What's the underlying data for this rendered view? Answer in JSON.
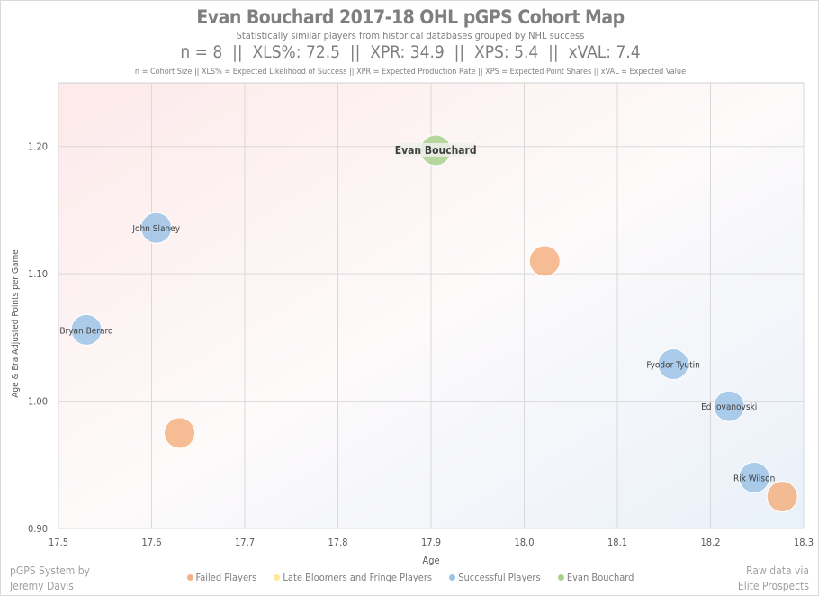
{
  "header": {
    "title": "Evan Bouchard 2017-18 OHL pGPS Cohort Map",
    "subtitle": "Statistically similar players from historical databases grouped by NHL success",
    "stats": "n = 8  ||  XLS%: 72.5  ||  XPR: 34.9  ||  XPS: 5.4  ||  xVAL: 7.4",
    "legend_note": "n = Cohort Size || XLS% = Expected Likelihood of Success || XPR = Expected Production Rate || XPS = Expected Point Shares || xVAL = Expected Value"
  },
  "footer": {
    "left_line1": "pGPS System by",
    "left_line2": "Jeremy Davis",
    "right_line1": "Raw data via",
    "right_line2": "Elite Prospects"
  },
  "chart_data": {
    "type": "scatter",
    "xlabel": "Age",
    "ylabel": "Age & Era Adjusted Points per Game",
    "xlim": [
      17.5,
      18.3
    ],
    "ylim": [
      0.9,
      1.25
    ],
    "xticks": [
      "17.5",
      "17.6",
      "17.7",
      "17.8",
      "17.9",
      "18.0",
      "18.1",
      "18.2",
      "18.3"
    ],
    "yticks": [
      "0.90",
      "1.00",
      "1.10",
      "1.20"
    ],
    "grid": true,
    "legend_position": "bottom",
    "series": [
      {
        "name": "Failed Players",
        "color": "#f4b183",
        "points": [
          {
            "x": 17.63,
            "y": 0.975,
            "label": ""
          },
          {
            "x": 18.022,
            "y": 1.11,
            "label": ""
          },
          {
            "x": 18.277,
            "y": 0.925,
            "label": ""
          }
        ]
      },
      {
        "name": "Late Bloomers and Fringe Players",
        "color": "#ffe699",
        "points": []
      },
      {
        "name": "Successful Players",
        "color": "#9dc3e6",
        "points": [
          {
            "x": 17.605,
            "y": 1.136,
            "label": "John Slaney"
          },
          {
            "x": 17.53,
            "y": 1.056,
            "label": "Bryan Berard"
          },
          {
            "x": 18.16,
            "y": 1.029,
            "label": "Fyodor Tyutin"
          },
          {
            "x": 18.22,
            "y": 0.996,
            "label": "Ed Jovanovski"
          },
          {
            "x": 18.247,
            "y": 0.94,
            "label": "Rik Wilson"
          }
        ]
      },
      {
        "name": "Evan Bouchard",
        "color": "#a9d18e",
        "points": [
          {
            "x": 17.905,
            "y": 1.197,
            "label": "Evan Bouchard"
          }
        ]
      }
    ]
  }
}
